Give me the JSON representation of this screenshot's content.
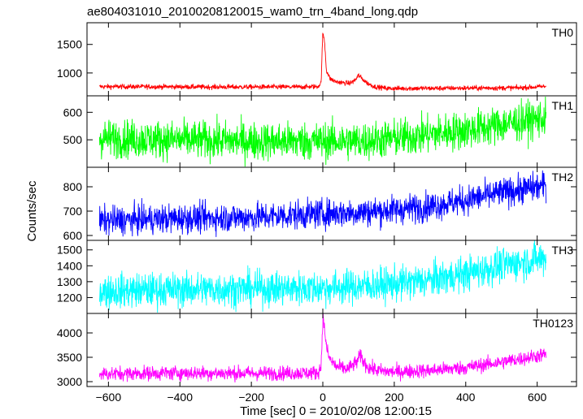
{
  "title": "ae804031010_20100208120015_wam0_trn_4band_long.qdp",
  "xlabel": "Time [sec] 0 = 2010/02/08 12:00:15",
  "ylabel": "Counts/sec",
  "chart_data": {
    "type": "line",
    "shared_x": true,
    "xlim": [
      -660,
      710
    ],
    "x_ticks": [
      -600,
      -400,
      -200,
      0,
      200,
      400,
      600
    ],
    "x_tick_labels": [
      "−600",
      "−400",
      "−200",
      "0",
      "200",
      "400",
      "600"
    ],
    "panels": [
      {
        "label": "TH0",
        "color": "#ff0000",
        "ylim": [
          600,
          1880
        ],
        "y_ticks": [
          1000,
          1500
        ],
        "x": [
          -625,
          -500,
          -300,
          -100,
          -15,
          -5,
          0,
          5,
          10,
          20,
          35,
          55,
          75,
          90,
          100,
          110,
          125,
          145,
          180,
          250,
          400,
          550,
          625
        ],
        "y": [
          760,
          760,
          755,
          755,
          760,
          820,
          1700,
          1550,
          1050,
          900,
          850,
          830,
          820,
          870,
          960,
          900,
          820,
          760,
          730,
          730,
          735,
          740,
          765
        ],
        "noise": 22
      },
      {
        "label": "TH1",
        "color": "#00ff00",
        "ylim": [
          400,
          660
        ],
        "y_ticks": [
          500,
          600
        ],
        "x": [
          -625,
          -400,
          -200,
          0,
          100,
          200,
          300,
          400,
          500,
          625
        ],
        "y": [
          505,
          500,
          495,
          495,
          495,
          505,
          520,
          535,
          555,
          580
        ],
        "noise": 35
      },
      {
        "label": "TH2",
        "color": "#0000ff",
        "ylim": [
          580,
          880
        ],
        "y_ticks": [
          600,
          700,
          800
        ],
        "x": [
          -625,
          -400,
          -200,
          0,
          100,
          200,
          300,
          400,
          500,
          625
        ],
        "y": [
          660,
          670,
          675,
          690,
          695,
          705,
          720,
          745,
          775,
          805
        ],
        "noise": 30
      },
      {
        "label": "TH3",
        "color": "#00ffff",
        "ylim": [
          1100,
          1560
        ],
        "y_ticks": [
          1200,
          1300,
          1400,
          1500
        ],
        "x": [
          -625,
          -400,
          -200,
          0,
          100,
          200,
          300,
          400,
          500,
          625
        ],
        "y": [
          1240,
          1250,
          1255,
          1260,
          1270,
          1285,
          1310,
          1350,
          1400,
          1450
        ],
        "noise": 55
      },
      {
        "label": "TH0123",
        "color": "#ff00ff",
        "ylim": [
          2900,
          4400
        ],
        "y_ticks": [
          3000,
          3500,
          4000
        ],
        "x": [
          -625,
          -400,
          -200,
          -15,
          -5,
          0,
          5,
          10,
          20,
          40,
          70,
          95,
          105,
          115,
          130,
          160,
          200,
          300,
          400,
          500,
          625
        ],
        "y": [
          3160,
          3180,
          3170,
          3180,
          3300,
          4300,
          4100,
          3700,
          3450,
          3300,
          3260,
          3400,
          3530,
          3400,
          3280,
          3220,
          3200,
          3230,
          3290,
          3400,
          3560
        ],
        "noise": 75
      }
    ]
  }
}
